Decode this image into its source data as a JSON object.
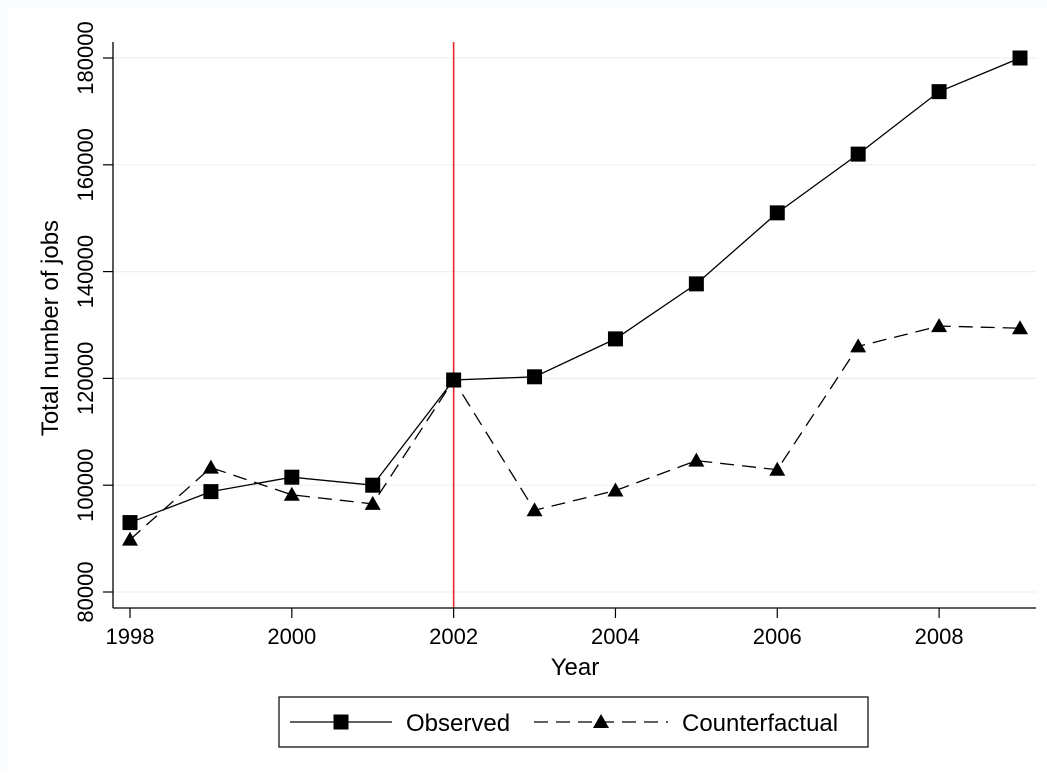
{
  "chart_data": {
    "type": "line",
    "title": "",
    "xlabel": "Year",
    "ylabel": "Total number of jobs",
    "x": [
      1998,
      1999,
      2000,
      2001,
      2002,
      2003,
      2004,
      2005,
      2006,
      2007,
      2008,
      2009
    ],
    "series": [
      {
        "name": "Observed",
        "values": [
          93000,
          98800,
          101500,
          100000,
          119700,
          120300,
          127400,
          137700,
          151000,
          162000,
          173700,
          180000
        ],
        "marker": "square",
        "line_style": "solid",
        "color": "#000000"
      },
      {
        "name": "Counterfactual",
        "values": [
          89800,
          103300,
          98200,
          96500,
          119700,
          95300,
          99000,
          104600,
          102900,
          126000,
          129800,
          129400
        ],
        "marker": "triangle",
        "line_style": "dashed",
        "color": "#000000"
      }
    ],
    "xlim": [
      1998,
      2009
    ],
    "ylim": [
      77000,
      183000
    ],
    "xticks": [
      "1998",
      "2000",
      "2002",
      "2004",
      "2006",
      "2008"
    ],
    "yticks": [
      "80000",
      "100000",
      "120000",
      "140000",
      "160000",
      "180000"
    ],
    "reference_line": {
      "x": 2002,
      "color": "#e8262b"
    },
    "grid": true,
    "grid_color": "#eaf0f4",
    "legend_position": "bottom"
  }
}
